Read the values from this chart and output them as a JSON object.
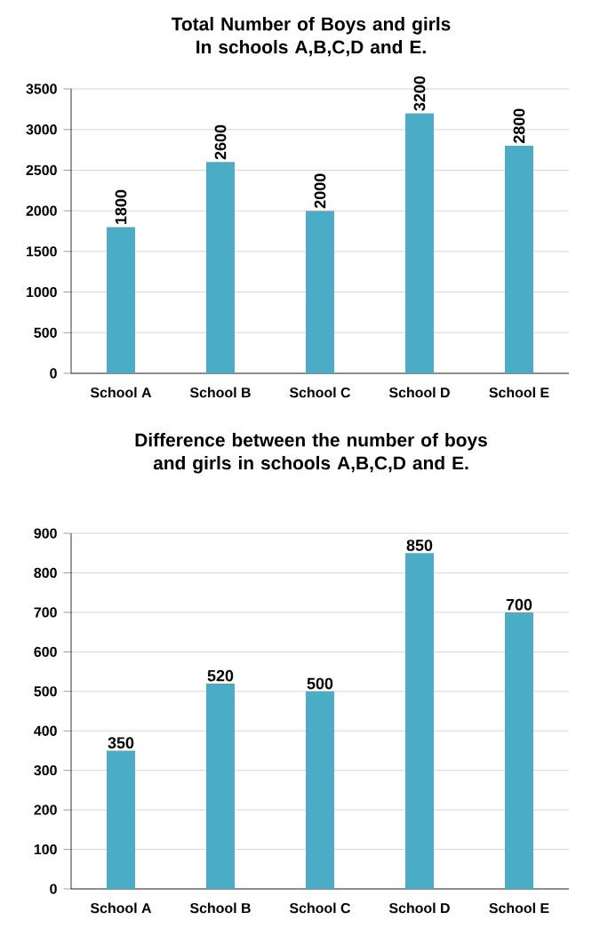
{
  "chart_data": [
    {
      "type": "bar",
      "title": "Total Number of Boys and girls In schools A,B,C,D and E.",
      "categories": [
        "School A",
        "School B",
        "School C",
        "School D",
        "School E"
      ],
      "values": [
        1800,
        2600,
        2000,
        3200,
        2800
      ],
      "color": "#4bacc6",
      "ylim": [
        0,
        3500
      ],
      "yticks": [
        0,
        500,
        1000,
        1500,
        2000,
        2500,
        3000,
        3500
      ],
      "grid": "y",
      "data_labels": true
    },
    {
      "type": "bar",
      "title": "Difference between the number of boys and girls in schools A,B,C,D and E.",
      "categories": [
        "School A",
        "School B",
        "School C",
        "School D",
        "School E"
      ],
      "values": [
        350,
        520,
        500,
        850,
        700
      ],
      "color": "#4bacc6",
      "ylim": [
        0,
        900
      ],
      "yticks": [
        0,
        100,
        200,
        300,
        400,
        500,
        600,
        700,
        800,
        900
      ],
      "grid": "y",
      "data_labels": true
    }
  ]
}
